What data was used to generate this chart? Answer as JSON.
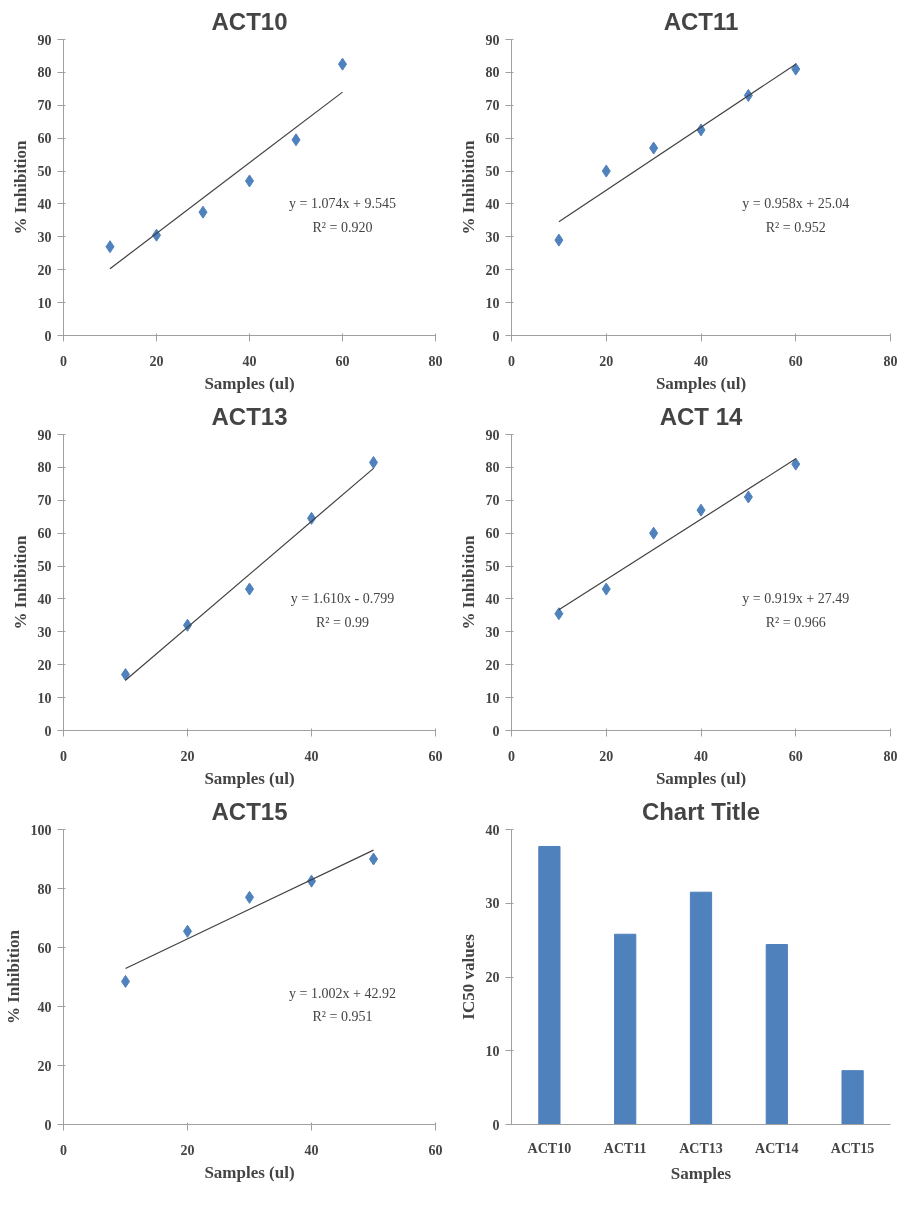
{
  "chart_data": [
    {
      "type": "scatter",
      "title": "ACT10",
      "xlabel": "Samples (ul)",
      "ylabel": "% Inhibition",
      "xlim": [
        0,
        80
      ],
      "xticks": [
        0,
        20,
        40,
        60,
        80
      ],
      "ylim": [
        0,
        90
      ],
      "yticks": [
        0,
        10,
        20,
        30,
        40,
        50,
        60,
        70,
        80,
        90
      ],
      "annotations": [
        "y = 1.074x + 9.545",
        "R² = 0.920"
      ],
      "series": [
        {
          "type": "scatter",
          "marker": "diamond",
          "color": "#4f81bd",
          "x": [
            10,
            20,
            30,
            40,
            50,
            60
          ],
          "values": [
            27,
            30.5,
            37.5,
            47,
            59.5,
            82.5
          ]
        },
        {
          "type": "line",
          "color": "#404040",
          "x": [
            10,
            60
          ],
          "values": [
            20.3,
            74.0
          ]
        }
      ]
    },
    {
      "type": "scatter",
      "title": "ACT11",
      "xlabel": "Samples (ul)",
      "ylabel": "% Inhibition",
      "xlim": [
        0,
        80
      ],
      "xticks": [
        0,
        20,
        40,
        60,
        80
      ],
      "ylim": [
        0,
        90
      ],
      "yticks": [
        0,
        10,
        20,
        30,
        40,
        50,
        60,
        70,
        80,
        90
      ],
      "annotations": [
        "y = 0.958x + 25.04",
        "R² = 0.952"
      ],
      "series": [
        {
          "type": "scatter",
          "marker": "diamond",
          "color": "#4f81bd",
          "x": [
            10,
            20,
            30,
            40,
            50,
            60
          ],
          "values": [
            29,
            50,
            57,
            62.5,
            73,
            81
          ]
        },
        {
          "type": "line",
          "color": "#404040",
          "x": [
            10,
            60
          ],
          "values": [
            34.6,
            82.5
          ]
        }
      ]
    },
    {
      "type": "scatter",
      "title": "ACT13",
      "xlabel": "Samples (ul)",
      "ylabel": "% Inhibition",
      "xlim": [
        0,
        60
      ],
      "xticks": [
        0,
        20,
        40,
        60
      ],
      "ylim": [
        0,
        90
      ],
      "yticks": [
        0,
        10,
        20,
        30,
        40,
        50,
        60,
        70,
        80,
        90
      ],
      "annotations": [
        "y = 1.610x - 0.799",
        "R² = 0.99"
      ],
      "series": [
        {
          "type": "scatter",
          "marker": "diamond",
          "color": "#4f81bd",
          "x": [
            10,
            20,
            30,
            40,
            50
          ],
          "values": [
            17,
            32,
            43,
            64.5,
            81.5
          ]
        },
        {
          "type": "line",
          "color": "#404040",
          "x": [
            10,
            50
          ],
          "values": [
            15.3,
            79.7
          ]
        }
      ]
    },
    {
      "type": "scatter",
      "title": "ACT 14",
      "xlabel": "Samples (ul)",
      "ylabel": "% Inhibition",
      "xlim": [
        0,
        80
      ],
      "xticks": [
        0,
        20,
        40,
        60,
        80
      ],
      "ylim": [
        0,
        90
      ],
      "yticks": [
        0,
        10,
        20,
        30,
        40,
        50,
        60,
        70,
        80,
        90
      ],
      "annotations": [
        "y = 0.919x + 27.49",
        "R² = 0.966"
      ],
      "series": [
        {
          "type": "scatter",
          "marker": "diamond",
          "color": "#4f81bd",
          "x": [
            10,
            20,
            30,
            40,
            50,
            60
          ],
          "values": [
            35.5,
            43,
            60,
            67,
            71,
            81
          ]
        },
        {
          "type": "line",
          "color": "#404040",
          "x": [
            10,
            60
          ],
          "values": [
            36.7,
            82.6
          ]
        }
      ]
    },
    {
      "type": "scatter",
      "title": "ACT15",
      "xlabel": "Samples (ul)",
      "ylabel": "% Inhibition",
      "xlim": [
        0,
        60
      ],
      "xticks": [
        0,
        20,
        40,
        60
      ],
      "ylim": [
        0,
        100
      ],
      "yticks": [
        0,
        20,
        40,
        60,
        80,
        100
      ],
      "annotations": [
        "y = 1.002x + 42.92",
        "R² = 0.951"
      ],
      "series": [
        {
          "type": "scatter",
          "marker": "diamond",
          "color": "#4f81bd",
          "x": [
            10,
            20,
            30,
            40,
            50
          ],
          "values": [
            48.5,
            65.5,
            77,
            82.5,
            90
          ]
        },
        {
          "type": "line",
          "color": "#404040",
          "x": [
            10,
            50
          ],
          "values": [
            52.9,
            93.0
          ]
        }
      ]
    },
    {
      "type": "bar",
      "title": "Chart Title",
      "xlabel": "Samples",
      "ylabel": "IC50 values",
      "categories": [
        "ACT10",
        "ACT11",
        "ACT13",
        "ACT14",
        "ACT15"
      ],
      "values": [
        37.7,
        25.8,
        31.5,
        24.4,
        7.3
      ],
      "color": "#4f81bd",
      "ylim": [
        0,
        40
      ],
      "yticks": [
        0,
        10,
        20,
        30,
        40
      ]
    }
  ]
}
